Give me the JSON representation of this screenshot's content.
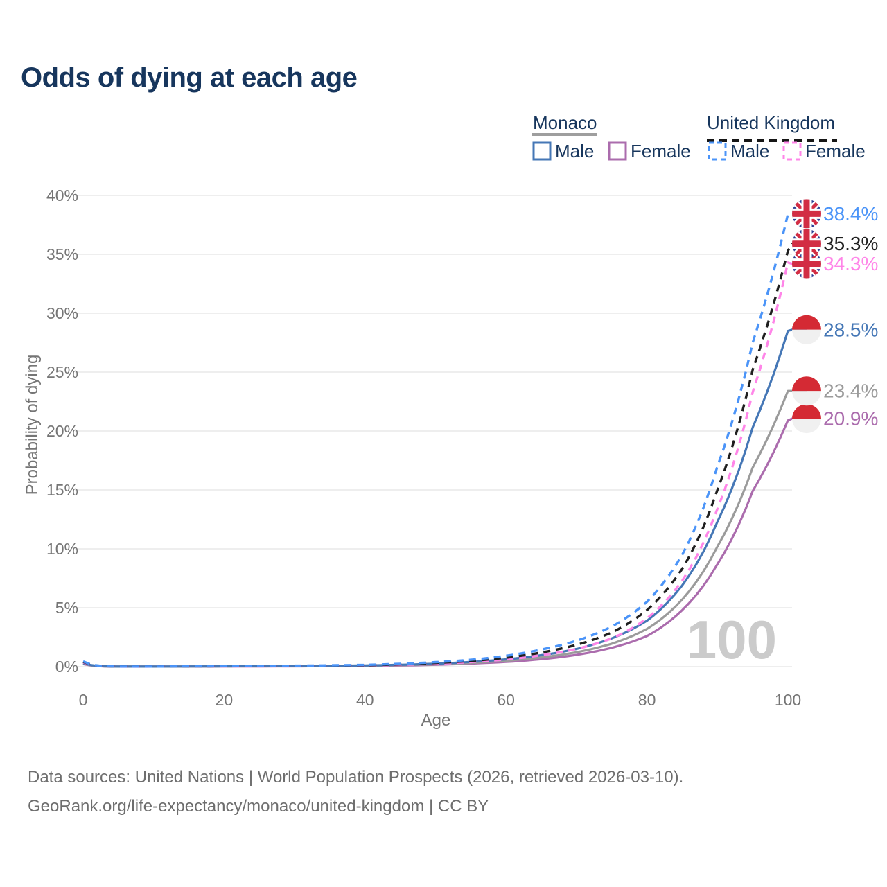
{
  "title": "Odds of dying at each age",
  "legend": {
    "groups": [
      {
        "label": "Monaco",
        "line_style": "solid",
        "underline_color": "#9e9e9e",
        "items": [
          {
            "label": "Male",
            "color": "#4577b6",
            "dashed": false
          },
          {
            "label": "Female",
            "color": "#ab6cad",
            "dashed": false
          }
        ]
      },
      {
        "label": "United Kingdom",
        "line_style": "dashed",
        "underline_color": "#161616",
        "items": [
          {
            "label": "Male",
            "color": "#4b94f8",
            "dashed": true
          },
          {
            "label": "Female",
            "color": "#ff85e8",
            "dashed": true
          }
        ]
      }
    ]
  },
  "chart_data": {
    "type": "line",
    "title": "Odds of dying at each age",
    "xlabel": "Age",
    "ylabel": "Probability of dying",
    "xlim": [
      0,
      100
    ],
    "ylim": [
      0,
      40
    ],
    "x_ticks": [
      0,
      20,
      40,
      60,
      80,
      100
    ],
    "y_ticks": [
      0,
      5,
      10,
      15,
      20,
      25,
      30,
      35,
      40
    ],
    "y_tick_suffix": "%",
    "grid": "horizontal",
    "watermark": "100",
    "ages": [
      0,
      5,
      10,
      20,
      30,
      40,
      50,
      55,
      60,
      65,
      70,
      75,
      80,
      85,
      90,
      95,
      100
    ],
    "series": [
      {
        "id": "monaco_female",
        "name": "Monaco Female",
        "country": "monaco",
        "color": "#ab6cad",
        "dashed": false,
        "values": [
          0.22,
          0.005,
          0.006,
          0.02,
          0.03,
          0.06,
          0.16,
          0.26,
          0.4,
          0.63,
          1.0,
          1.6,
          2.6,
          4.8,
          8.7,
          14.9,
          20.9
        ],
        "end_value": 20.9,
        "end_label": "20.9%",
        "label_pct": 21.05
      },
      {
        "id": "monaco_both",
        "name": "Monaco",
        "country": "monaco",
        "color": "#9b9b9b",
        "dashed": false,
        "values": [
          0.26,
          0.006,
          0.007,
          0.025,
          0.04,
          0.08,
          0.2,
          0.32,
          0.5,
          0.78,
          1.22,
          1.95,
          3.2,
          5.7,
          10.2,
          16.9,
          23.4
        ],
        "end_value": 23.4,
        "end_label": "23.4%",
        "label_pct": 23.4
      },
      {
        "id": "monaco_male",
        "name": "Monaco Male",
        "country": "monaco",
        "color": "#4577b6",
        "dashed": false,
        "values": [
          0.3,
          0.007,
          0.008,
          0.03,
          0.05,
          0.1,
          0.25,
          0.4,
          0.62,
          0.97,
          1.5,
          2.4,
          3.9,
          6.9,
          12.3,
          20.3,
          28.5
        ],
        "end_value": 28.5,
        "end_label": "28.5%",
        "label_pct": 28.6
      },
      {
        "id": "uk_female",
        "name": "United Kingdom Female",
        "country": "uk",
        "color": "#ff85e8",
        "dashed": true,
        "values": [
          0.36,
          0.008,
          0.009,
          0.025,
          0.04,
          0.1,
          0.25,
          0.39,
          0.61,
          0.97,
          1.5,
          2.4,
          4.1,
          7.3,
          13.4,
          23.3,
          34.3
        ],
        "end_value": 34.3,
        "end_label": "34.3%",
        "label_pct": 34.2
      },
      {
        "id": "uk_both",
        "name": "United Kingdom",
        "country": "uk",
        "color": "#1f1f1f",
        "dashed": true,
        "values": [
          0.4,
          0.009,
          0.01,
          0.04,
          0.06,
          0.12,
          0.31,
          0.48,
          0.76,
          1.2,
          1.85,
          2.9,
          4.8,
          8.3,
          15.0,
          25.2,
          35.3
        ],
        "end_value": 35.3,
        "end_label": "35.3%",
        "label_pct": 35.9
      },
      {
        "id": "uk_male",
        "name": "United Kingdom Male",
        "country": "uk",
        "color": "#4b94f8",
        "dashed": true,
        "values": [
          0.45,
          0.01,
          0.012,
          0.05,
          0.08,
          0.15,
          0.38,
          0.58,
          0.92,
          1.45,
          2.2,
          3.4,
          5.5,
          9.5,
          17.0,
          27.5,
          38.4
        ],
        "end_value": 38.4,
        "end_label": "38.4%",
        "label_pct": 38.45
      }
    ],
    "flag_colors": {
      "monaco_red": "#d42a34",
      "monaco_white": "#f0f0f0",
      "uk_blue": "#2b3f94",
      "uk_red": "#d22d44",
      "uk_white": "#ffffff"
    }
  },
  "footer": {
    "line1": "Data sources: United Nations | World Population Prospects (2026, retrieved 2026-03-10).",
    "line2": "GeoRank.org/life-expectancy/monaco/united-kingdom | CC BY"
  }
}
